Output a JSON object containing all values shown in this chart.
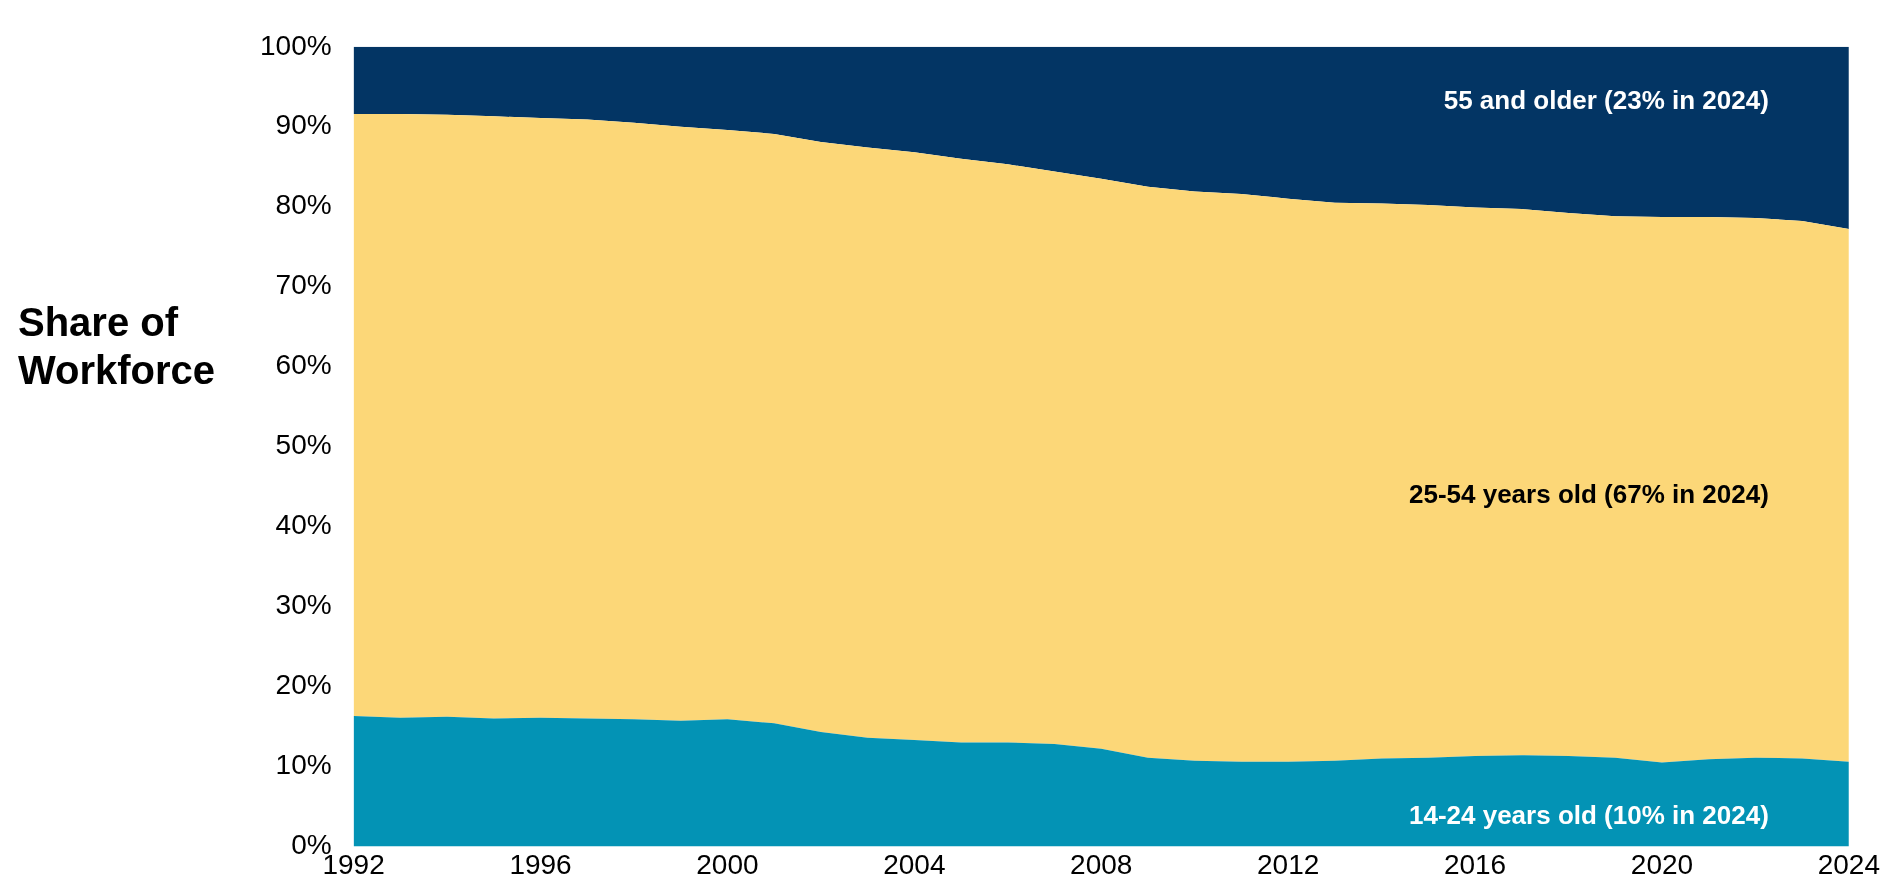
{
  "chart_data": {
    "type": "area",
    "stacked": true,
    "ylabel": "Share of Workforce",
    "x": [
      1992,
      1993,
      1994,
      1995,
      1996,
      1997,
      1998,
      1999,
      2000,
      2001,
      2002,
      2003,
      2004,
      2005,
      2006,
      2007,
      2008,
      2009,
      2010,
      2011,
      2012,
      2013,
      2014,
      2015,
      2016,
      2017,
      2018,
      2019,
      2020,
      2021,
      2022,
      2023,
      2024
    ],
    "series": [
      {
        "name": "14-24 years old (10% in 2024)",
        "color": "#0393b5",
        "values": [
          16.3,
          16.1,
          16.2,
          16.0,
          16.1,
          16.0,
          15.9,
          15.7,
          15.9,
          15.4,
          14.3,
          13.6,
          13.3,
          13.0,
          13.0,
          12.8,
          12.2,
          11.1,
          10.7,
          10.6,
          10.6,
          10.7,
          11.0,
          11.1,
          11.3,
          11.4,
          11.3,
          11.1,
          10.5,
          10.9,
          11.1,
          11.0,
          10.6
        ]
      },
      {
        "name": "25-54 years old (67% in 2024)",
        "color": "#fcd778",
        "values": [
          75.3,
          75.5,
          75.3,
          75.3,
          75.0,
          74.9,
          74.6,
          74.3,
          73.7,
          73.7,
          73.8,
          73.8,
          73.5,
          73.0,
          72.3,
          71.6,
          71.3,
          71.4,
          71.2,
          71.0,
          70.4,
          69.8,
          69.4,
          69.1,
          68.6,
          68.3,
          67.9,
          67.7,
          68.2,
          67.8,
          67.5,
          67.2,
          66.6
        ]
      },
      {
        "name": "55 and older (23% in 2024)",
        "color": "#033564",
        "values": [
          8.4,
          8.4,
          8.5,
          8.7,
          8.9,
          9.1,
          9.5,
          10.0,
          10.4,
          10.9,
          11.9,
          12.6,
          13.2,
          14.0,
          14.7,
          15.6,
          16.5,
          17.5,
          18.1,
          18.4,
          19.0,
          19.5,
          19.6,
          19.8,
          20.1,
          20.3,
          20.8,
          21.2,
          21.3,
          21.3,
          21.4,
          21.8,
          22.8
        ]
      }
    ],
    "xlim": [
      1992,
      2024
    ],
    "xticks": [
      1992,
      1996,
      2000,
      2004,
      2008,
      2012,
      2016,
      2020,
      2024
    ],
    "ylim": [
      0,
      100
    ],
    "yticks": [
      {
        "value": 0,
        "label": "0%"
      },
      {
        "value": 10,
        "label": "10%"
      },
      {
        "value": 20,
        "label": "20%"
      },
      {
        "value": 30,
        "label": "30%"
      },
      {
        "value": 40,
        "label": "40%"
      },
      {
        "value": 50,
        "label": "50%"
      },
      {
        "value": 60,
        "label": "60%"
      },
      {
        "value": 70,
        "label": "70%"
      },
      {
        "value": 80,
        "label": "80%"
      },
      {
        "value": 90,
        "label": "90%"
      },
      {
        "value": 100,
        "label": "100%"
      }
    ],
    "grid": false,
    "legend": false
  }
}
